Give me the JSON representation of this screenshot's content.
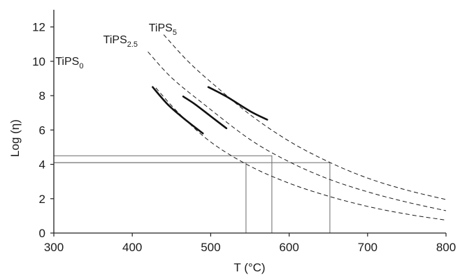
{
  "chart_data": {
    "type": "line",
    "xlabel": "T (°C)",
    "ylabel": "Log (η)",
    "xlim": [
      300,
      800
    ],
    "ylim": [
      0,
      13
    ],
    "x_ticks": [
      300,
      400,
      500,
      600,
      700,
      800
    ],
    "y_ticks": [
      0,
      2,
      4,
      6,
      8,
      10,
      12
    ],
    "grid": false,
    "series": [
      {
        "label_main": "TiPS",
        "label_sub": "0",
        "label_anchor": {
          "x": 302,
          "y": 9.8
        },
        "fit": [
          [
            430,
            8.45
          ],
          [
            460,
            6.95
          ],
          [
            500,
            5.3
          ],
          [
            550,
            3.9
          ],
          [
            600,
            2.9
          ],
          [
            650,
            2.15
          ],
          [
            700,
            1.55
          ],
          [
            750,
            1.1
          ],
          [
            800,
            0.75
          ]
        ],
        "measured": [
          [
            426,
            8.5
          ],
          [
            445,
            7.5
          ],
          [
            465,
            6.7
          ],
          [
            490,
            5.8
          ]
        ],
        "viscosity_ref": {
          "log_eta": 4.1,
          "temperature": 545
        }
      },
      {
        "label_main": "TiPS",
        "label_sub": "2.5",
        "label_anchor": {
          "x": 363,
          "y": 11.05
        },
        "fit": [
          [
            420,
            10.55
          ],
          [
            450,
            9.05
          ],
          [
            490,
            7.55
          ],
          [
            550,
            5.45
          ],
          [
            600,
            4.15
          ],
          [
            650,
            3.15
          ],
          [
            700,
            2.4
          ],
          [
            750,
            1.8
          ],
          [
            800,
            1.3
          ]
        ],
        "measured": [
          [
            465,
            7.95
          ],
          [
            480,
            7.5
          ],
          [
            500,
            6.8
          ],
          [
            520,
            6.1
          ]
        ],
        "viscosity_ref": {
          "log_eta": 4.5,
          "temperature": 578
        }
      },
      {
        "label_main": "TiPS",
        "label_sub": "5",
        "label_anchor": {
          "x": 421,
          "y": 11.75
        },
        "fit": [
          [
            440,
            11.55
          ],
          [
            470,
            10.05
          ],
          [
            500,
            8.8
          ],
          [
            550,
            6.9
          ],
          [
            600,
            5.35
          ],
          [
            650,
            4.15
          ],
          [
            700,
            3.2
          ],
          [
            750,
            2.5
          ],
          [
            800,
            1.95
          ]
        ],
        "measured": [
          [
            497,
            8.5
          ],
          [
            520,
            7.95
          ],
          [
            550,
            7.1
          ],
          [
            572,
            6.6
          ]
        ],
        "viscosity_ref": {
          "log_eta": 4.1,
          "temperature": 652
        }
      }
    ]
  }
}
